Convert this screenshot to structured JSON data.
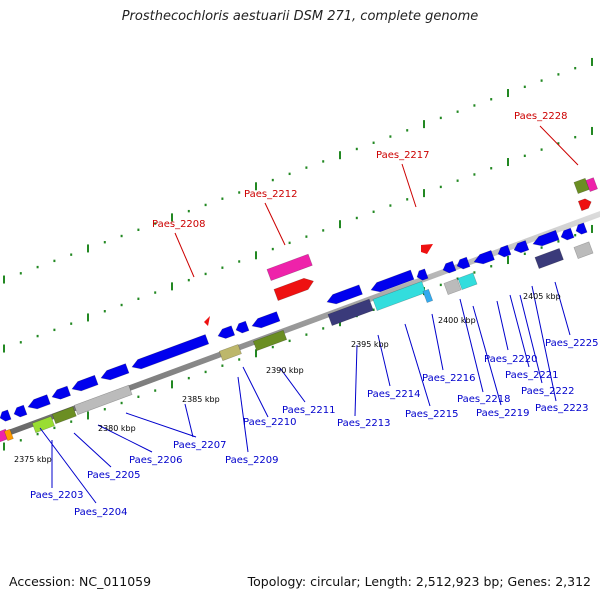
{
  "title": "Prosthecochloris aestuarii DSM 271, complete genome",
  "footer": {
    "accession": "Accession: NC_011059",
    "topology": "Topology: circular; Length: 2,512,923 bp; Genes: 2,312"
  },
  "colors": {
    "blue_gene": "#0000ee",
    "pink_gene": "#ee22aa",
    "red_gene": "#ee1111",
    "olive_gene": "#6b8e23",
    "khaki_gene": "#bdb76b",
    "navy_gene": "#3a3a7a",
    "cyan_gene": "#33dddd",
    "grey_gene": "#bbbbbb",
    "lime_gene": "#99dd33",
    "orange_gene": "#ff9900",
    "tick_green": "#228822",
    "backbone": "#999999"
  },
  "chart_data": {
    "type": "diagram",
    "kbp_ticks": [
      {
        "label": "2375 kbp"
      },
      {
        "label": "2380 kbp"
      },
      {
        "label": "2385 kbp"
      },
      {
        "label": "2390 kbp"
      },
      {
        "label": "2395 kbp"
      },
      {
        "label": "2400 kbp"
      },
      {
        "label": "2405 kbp"
      }
    ],
    "blue_labels": [
      "Paes_2203",
      "Paes_2204",
      "Paes_2205",
      "Paes_2206",
      "Paes_2207",
      "Paes_2209",
      "Paes_2210",
      "Paes_2211",
      "Paes_2213",
      "Paes_2214",
      "Paes_2215",
      "Paes_2216",
      "Paes_2218",
      "Paes_2219",
      "Paes_2220",
      "Paes_2221",
      "Paes_2222",
      "Paes_2223",
      "Paes_2225"
    ],
    "red_labels": [
      "Paes_2208",
      "Paes_2212",
      "Paes_2217",
      "Paes_2228"
    ]
  }
}
